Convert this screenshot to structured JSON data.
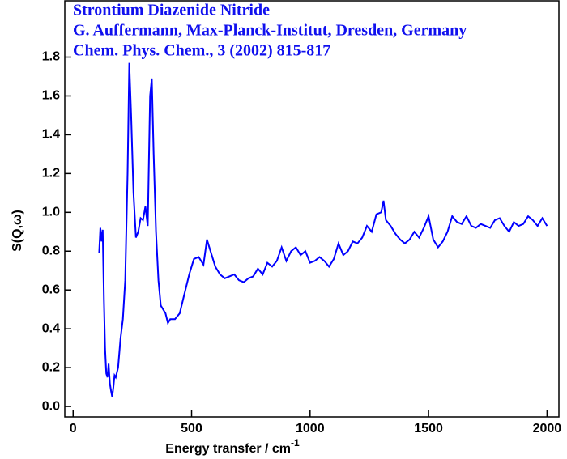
{
  "chart_data": {
    "type": "line",
    "title_lines": [
      "Strontium Diazenide Nitride",
      "G. Auffermann, Max-Planck-Institut, Dresden, Germany",
      "Chem. Phys. Chem., 3 (2002) 815-817"
    ],
    "x_label": "Energy transfer / cm",
    "x_label_sup": "-1",
    "y_label": "S(Q,ω)",
    "color": "#0000ff",
    "x": [
      110,
      115,
      120,
      125,
      130,
      135,
      140,
      145,
      150,
      155,
      160,
      165,
      170,
      175,
      180,
      190,
      200,
      210,
      220,
      230,
      237,
      245,
      255,
      265,
      275,
      285,
      295,
      305,
      315,
      325,
      332,
      340,
      350,
      360,
      370,
      380,
      390,
      400,
      410,
      430,
      450,
      470,
      490,
      510,
      530,
      550,
      565,
      580,
      600,
      620,
      640,
      660,
      680,
      700,
      720,
      740,
      760,
      780,
      800,
      820,
      840,
      860,
      880,
      900,
      920,
      940,
      960,
      980,
      1000,
      1020,
      1040,
      1060,
      1080,
      1100,
      1120,
      1140,
      1160,
      1180,
      1200,
      1220,
      1240,
      1260,
      1280,
      1300,
      1310,
      1320,
      1340,
      1360,
      1380,
      1400,
      1420,
      1440,
      1460,
      1480,
      1500,
      1520,
      1540,
      1560,
      1580,
      1600,
      1620,
      1640,
      1660,
      1680,
      1700,
      1720,
      1740,
      1760,
      1780,
      1800,
      1820,
      1840,
      1860,
      1880,
      1900,
      1920,
      1940,
      1960,
      1980,
      2000
    ],
    "values": [
      0.79,
      0.92,
      0.85,
      0.91,
      0.55,
      0.3,
      0.17,
      0.15,
      0.22,
      0.12,
      0.08,
      0.05,
      0.1,
      0.16,
      0.15,
      0.2,
      0.35,
      0.45,
      0.65,
      1.2,
      1.77,
      1.5,
      1.1,
      0.87,
      0.9,
      0.97,
      0.96,
      1.03,
      0.93,
      1.6,
      1.69,
      1.3,
      0.9,
      0.65,
      0.52,
      0.5,
      0.48,
      0.43,
      0.45,
      0.45,
      0.48,
      0.58,
      0.68,
      0.76,
      0.77,
      0.73,
      0.86,
      0.8,
      0.72,
      0.68,
      0.66,
      0.67,
      0.68,
      0.65,
      0.64,
      0.66,
      0.67,
      0.71,
      0.68,
      0.74,
      0.72,
      0.75,
      0.82,
      0.75,
      0.8,
      0.82,
      0.78,
      0.8,
      0.74,
      0.75,
      0.77,
      0.75,
      0.72,
      0.76,
      0.84,
      0.78,
      0.8,
      0.85,
      0.84,
      0.87,
      0.93,
      0.9,
      0.99,
      1.0,
      1.06,
      0.96,
      0.93,
      0.89,
      0.86,
      0.84,
      0.86,
      0.9,
      0.87,
      0.92,
      0.98,
      0.86,
      0.82,
      0.85,
      0.9,
      0.98,
      0.95,
      0.94,
      0.98,
      0.93,
      0.92,
      0.94,
      0.93,
      0.92,
      0.96,
      0.97,
      0.93,
      0.9,
      0.95,
      0.93,
      0.94,
      0.98,
      0.96,
      0.93,
      0.97,
      0.93
    ],
    "xlim": [
      -35,
      2050
    ],
    "xticks": [
      0,
      500,
      1000,
      1500,
      2000
    ],
    "ylim": [
      -0.054,
      2.09
    ],
    "yticks": [
      {
        "value": 0,
        "label": "0.0"
      },
      {
        "value": 0.2,
        "label": "0.2"
      },
      {
        "value": 0.4,
        "label": "0.4"
      },
      {
        "value": 0.6,
        "label": "0.6"
      },
      {
        "value": 0.8,
        "label": "0.8"
      },
      {
        "value": 1.0,
        "label": "1.0"
      },
      {
        "value": 1.2,
        "label": "1.2"
      },
      {
        "value": 1.4,
        "label": "1.4"
      },
      {
        "value": 1.6,
        "label": "1.6"
      },
      {
        "value": 1.8,
        "label": "1.8"
      }
    ]
  }
}
